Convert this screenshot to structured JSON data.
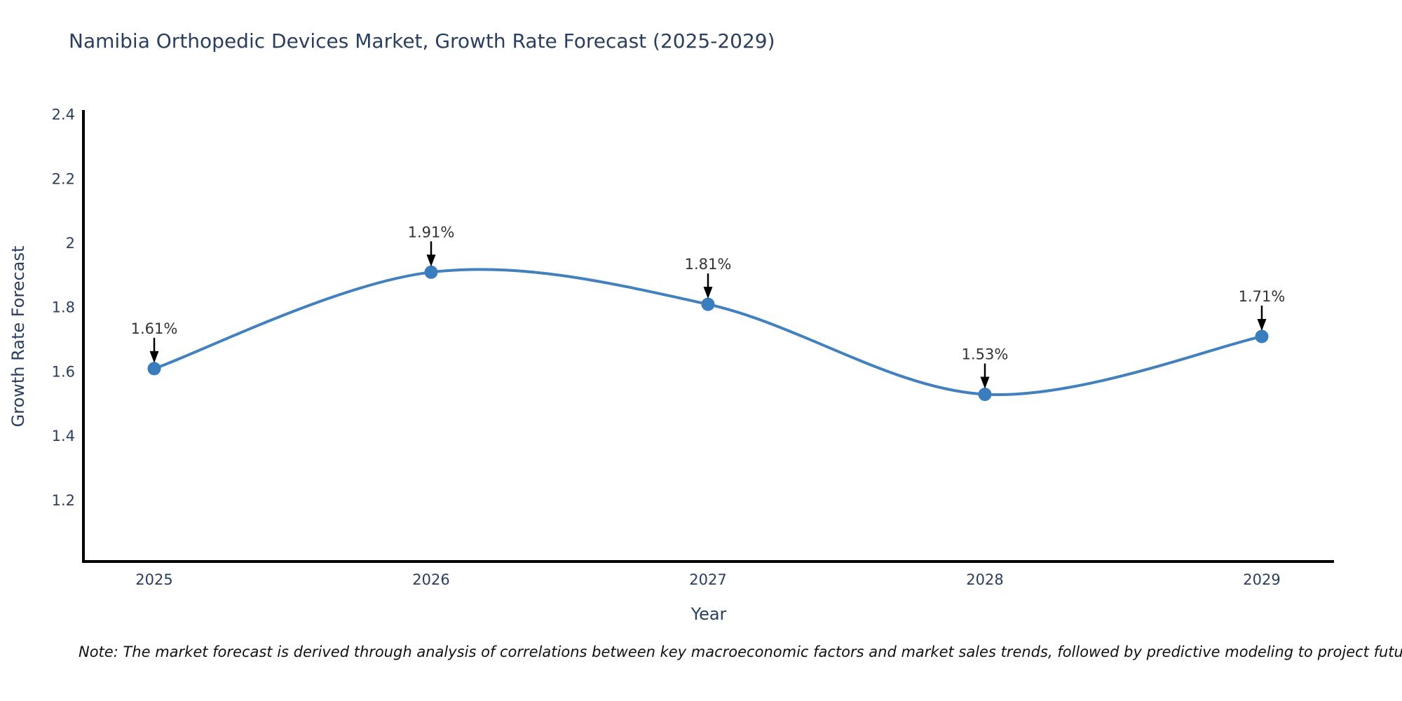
{
  "title": "Namibia Orthopedic Devices Market, Growth Rate Forecast (2025-2029)",
  "footnote": "Note: The market forecast is derived through analysis of correlations between key macroeconomic factors and market sales trends, followed by predictive modeling to project future sales",
  "chart_data": {
    "type": "line",
    "title": "Namibia Orthopedic Devices Market, Growth Rate Forecast (2025-2029)",
    "x": [
      "2025",
      "2026",
      "2027",
      "2028",
      "2029"
    ],
    "values": [
      1.61,
      1.91,
      1.81,
      1.53,
      1.71
    ],
    "point_labels": [
      "1.61%",
      "1.91%",
      "1.81%",
      "1.53%",
      "1.71%"
    ],
    "xlabel": "Year",
    "ylabel": "Growth Rate Forecast",
    "yticks": [
      1.2,
      1.4,
      1.6,
      1.8,
      2,
      2.2,
      2.4
    ],
    "ytick_labels": [
      "1.2",
      "1.4",
      "1.6",
      "1.8",
      "2",
      "2.2",
      "2.4"
    ],
    "ylim": [
      1.01,
      2.41
    ],
    "line_shape": "spline",
    "grid": false,
    "legend": false,
    "annotations_have_arrows": true,
    "colors": {
      "line": "#4281bd",
      "marker": "#3a7dbf",
      "axis": "#000000",
      "text": "#2a3f5f",
      "annotation_text": "#333333",
      "annotation_arrow": "#000000"
    }
  }
}
